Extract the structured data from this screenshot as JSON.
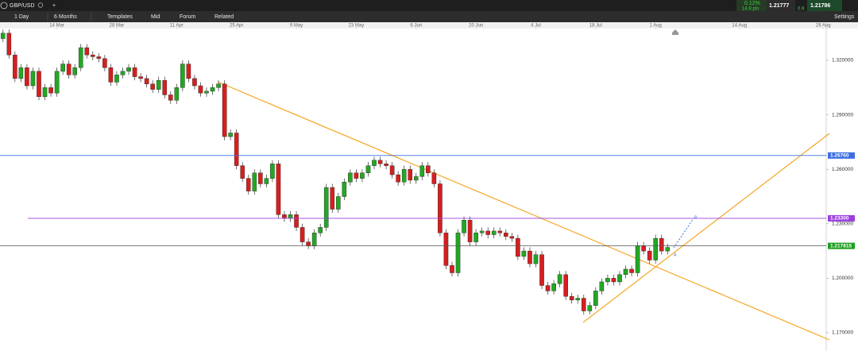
{
  "toolbar": {
    "symbol": "GBP/USD",
    "interval": "1 Day",
    "range": "6 Months",
    "templates": "Templates",
    "price_type": "Mid",
    "forum": "Forum",
    "related": "Related",
    "settings": "Settings",
    "change_pct": "0.12%",
    "change_pts": "14.9 pts",
    "bid": "1.21777",
    "spread": "0.9",
    "ask": "1.21786"
  },
  "chart_data": {
    "type": "candlestick",
    "ylim": [
      1.1608,
      1.3375
    ],
    "yticks": [
      {
        "value": 1.32,
        "label": "1.320000"
      },
      {
        "value": 1.29,
        "label": "1.290000"
      },
      {
        "value": 1.26,
        "label": "1.260000"
      },
      {
        "value": 1.23,
        "label": "1.230000"
      },
      {
        "value": 1.2,
        "label": "1.200000"
      },
      {
        "value": 1.17,
        "label": "1.170000"
      }
    ],
    "xlim": [
      -0.5,
      137.5
    ],
    "xticks": [
      {
        "value": 9,
        "label": "14 Mar"
      },
      {
        "value": 19,
        "label": "28 Mar"
      },
      {
        "value": 29,
        "label": "11 Apr"
      },
      {
        "value": 39,
        "label": "25 Apr"
      },
      {
        "value": 49,
        "label": "9 May"
      },
      {
        "value": 59,
        "label": "23 May"
      },
      {
        "value": 69,
        "label": "6 Jun"
      },
      {
        "value": 79,
        "label": "20 Jun"
      },
      {
        "value": 89,
        "label": "4 Jul"
      },
      {
        "value": 99,
        "label": "18 Jul"
      },
      {
        "value": 109,
        "label": "1 Aug"
      },
      {
        "value": 123,
        "label": "14 Aug"
      },
      {
        "value": 137,
        "label": "28 Aug"
      }
    ],
    "up_color": "#22a822",
    "down_color": "#d81e1e",
    "open": [
      1.332,
      1.335,
      1.323,
      1.31,
      1.316,
      1.306,
      1.314,
      1.3,
      1.305,
      1.302,
      1.314,
      1.318,
      1.312,
      1.316,
      1.327,
      1.323,
      1.322,
      1.321,
      1.316,
      1.308,
      1.312,
      1.314,
      1.316,
      1.311,
      1.31,
      1.307,
      1.304,
      1.309,
      1.301,
      1.298,
      1.305,
      1.318,
      1.31,
      1.306,
      1.302,
      1.303,
      1.305,
      1.307,
      1.278,
      1.28,
      1.262,
      1.255,
      1.248,
      1.258,
      1.252,
      1.255,
      1.263,
      1.235,
      1.233,
      1.235,
      1.228,
      1.22,
      1.218,
      1.225,
      1.228,
      1.25,
      1.238,
      1.245,
      1.253,
      1.258,
      1.255,
      1.258,
      1.262,
      1.265,
      1.263,
      1.262,
      1.257,
      1.253,
      1.26,
      1.254,
      1.256,
      1.262,
      1.258,
      1.252,
      1.225,
      1.207,
      1.203,
      1.225,
      1.232,
      1.22,
      1.225,
      1.226,
      1.224,
      1.226,
      1.225,
      1.223,
      1.222,
      1.212,
      1.215,
      1.208,
      1.213,
      1.196,
      1.193,
      1.197,
      1.202,
      1.19,
      1.188,
      1.189,
      1.182,
      1.185,
      1.193,
      1.198,
      1.2,
      1.198,
      1.202,
      1.205,
      1.203,
      1.218,
      1.215,
      1.21,
      1.222,
      1.215
    ],
    "high": [
      1.337,
      1.337,
      1.325,
      1.318,
      1.318,
      1.316,
      1.316,
      1.307,
      1.307,
      1.316,
      1.32,
      1.32,
      1.318,
      1.329,
      1.329,
      1.325,
      1.324,
      1.323,
      1.318,
      1.314,
      1.316,
      1.318,
      1.318,
      1.313,
      1.312,
      1.309,
      1.311,
      1.311,
      1.303,
      1.307,
      1.32,
      1.32,
      1.312,
      1.308,
      1.305,
      1.307,
      1.309,
      1.309,
      1.282,
      1.282,
      1.264,
      1.257,
      1.26,
      1.26,
      1.257,
      1.265,
      1.265,
      1.237,
      1.237,
      1.237,
      1.23,
      1.222,
      1.227,
      1.23,
      1.252,
      1.252,
      1.247,
      1.255,
      1.26,
      1.26,
      1.26,
      1.264,
      1.267,
      1.267,
      1.265,
      1.264,
      1.259,
      1.262,
      1.262,
      1.258,
      1.264,
      1.264,
      1.26,
      1.254,
      1.227,
      1.209,
      1.227,
      1.234,
      1.234,
      1.227,
      1.228,
      1.228,
      1.228,
      1.228,
      1.227,
      1.225,
      1.224,
      1.217,
      1.217,
      1.215,
      1.215,
      1.198,
      1.199,
      1.204,
      1.204,
      1.192,
      1.191,
      1.191,
      1.187,
      1.195,
      1.2,
      1.202,
      1.202,
      1.204,
      1.207,
      1.207,
      1.22,
      1.22,
      1.217,
      1.224,
      1.224,
      1.219
    ],
    "low": [
      1.33,
      1.321,
      1.308,
      1.308,
      1.304,
      1.304,
      1.298,
      1.298,
      1.3,
      1.3,
      1.312,
      1.31,
      1.31,
      1.314,
      1.321,
      1.32,
      1.319,
      1.314,
      1.306,
      1.306,
      1.31,
      1.312,
      1.309,
      1.308,
      1.305,
      1.302,
      1.302,
      1.299,
      1.296,
      1.296,
      1.303,
      1.308,
      1.304,
      1.3,
      1.3,
      1.301,
      1.303,
      1.276,
      1.276,
      1.26,
      1.253,
      1.246,
      1.246,
      1.25,
      1.25,
      1.253,
      1.233,
      1.231,
      1.231,
      1.226,
      1.218,
      1.216,
      1.216,
      1.223,
      1.226,
      1.236,
      1.236,
      1.243,
      1.251,
      1.253,
      1.253,
      1.256,
      1.26,
      1.261,
      1.26,
      1.255,
      1.251,
      1.251,
      1.252,
      1.252,
      1.254,
      1.256,
      1.25,
      1.223,
      1.205,
      1.201,
      1.201,
      1.223,
      1.218,
      1.218,
      1.223,
      1.222,
      1.222,
      1.223,
      1.221,
      1.22,
      1.21,
      1.21,
      1.206,
      1.206,
      1.194,
      1.191,
      1.191,
      1.195,
      1.188,
      1.186,
      1.186,
      1.18,
      1.18,
      1.183,
      1.191,
      1.196,
      1.196,
      1.196,
      1.2,
      1.201,
      1.201,
      1.213,
      1.208,
      1.208,
      1.213,
      1.213
    ],
    "close": [
      1.335,
      1.323,
      1.31,
      1.316,
      1.306,
      1.314,
      1.3,
      1.305,
      1.302,
      1.314,
      1.318,
      1.312,
      1.316,
      1.327,
      1.323,
      1.322,
      1.321,
      1.316,
      1.308,
      1.312,
      1.314,
      1.316,
      1.311,
      1.31,
      1.307,
      1.304,
      1.309,
      1.301,
      1.298,
      1.305,
      1.318,
      1.31,
      1.306,
      1.302,
      1.303,
      1.305,
      1.307,
      1.278,
      1.28,
      1.262,
      1.255,
      1.248,
      1.258,
      1.252,
      1.255,
      1.263,
      1.235,
      1.233,
      1.235,
      1.228,
      1.22,
      1.218,
      1.225,
      1.228,
      1.25,
      1.238,
      1.245,
      1.253,
      1.258,
      1.255,
      1.258,
      1.262,
      1.265,
      1.263,
      1.262,
      1.257,
      1.253,
      1.26,
      1.254,
      1.256,
      1.262,
      1.258,
      1.252,
      1.225,
      1.207,
      1.203,
      1.225,
      1.232,
      1.22,
      1.225,
      1.226,
      1.224,
      1.226,
      1.225,
      1.223,
      1.222,
      1.212,
      1.215,
      1.208,
      1.213,
      1.196,
      1.193,
      1.197,
      1.202,
      1.19,
      1.188,
      1.189,
      1.182,
      1.185,
      1.193,
      1.198,
      1.2,
      1.198,
      1.202,
      1.205,
      1.203,
      1.218,
      1.215,
      1.21,
      1.222,
      1.215,
      1.217
    ],
    "hlines": [
      {
        "value": 1.2676,
        "label": "1.26760",
        "color": "#3b6fe0"
      },
      {
        "value": 1.233,
        "label": "1.23300",
        "color": "#9b3fe0"
      },
      {
        "value": 1.217815,
        "label": "1.217815",
        "color": "#555555",
        "label_bg": "#1f9e1f"
      }
    ]
  }
}
